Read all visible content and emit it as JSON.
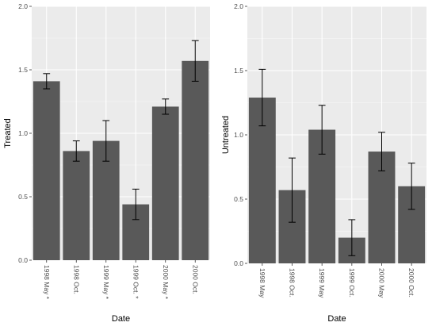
{
  "colors": {
    "panel_bg": "#ebebeb",
    "grid_major": "#ffffff",
    "bar_fill": "#595959",
    "error_bar": "#000000"
  },
  "chart_data": [
    {
      "type": "bar",
      "title": "",
      "xlabel": "Date",
      "ylabel": "Treated",
      "categories": [
        "1998 May *",
        "1998 Oct.",
        "1999 May *",
        "1999 Oct. *",
        "2000 May *",
        "2000 Oct."
      ],
      "values": [
        1.41,
        0.86,
        0.94,
        0.44,
        1.21,
        1.57
      ],
      "error_low": [
        1.35,
        0.78,
        0.78,
        0.32,
        1.15,
        1.41
      ],
      "error_high": [
        1.47,
        0.94,
        1.1,
        0.56,
        1.27,
        1.73
      ],
      "ylim": [
        0,
        2.0
      ],
      "yticks": [
        0.0,
        0.5,
        1.0,
        1.5,
        2.0
      ],
      "ytick_labels": [
        "0.0",
        "0.5",
        "1.0",
        "1.5",
        "2.0"
      ],
      "grid": true
    },
    {
      "type": "bar",
      "title": "",
      "xlabel": "Date",
      "ylabel": "Untreated",
      "categories": [
        "1998 May",
        "1998 Oct.",
        "1999 May",
        "1999 Oct.",
        "2000 May",
        "2000 Oct."
      ],
      "values": [
        1.29,
        0.57,
        1.04,
        0.2,
        0.87,
        0.6
      ],
      "error_low": [
        1.07,
        0.32,
        0.85,
        0.06,
        0.72,
        0.42
      ],
      "error_high": [
        1.51,
        0.82,
        1.23,
        0.34,
        1.02,
        0.78
      ],
      "ylim": [
        0,
        2.0
      ],
      "yticks": [
        0.0,
        0.5,
        1.0,
        1.5,
        2.0
      ],
      "ytick_labels": [
        "0.0",
        "0.5",
        "1.0",
        "1.5",
        "2.0"
      ],
      "grid": true
    }
  ]
}
